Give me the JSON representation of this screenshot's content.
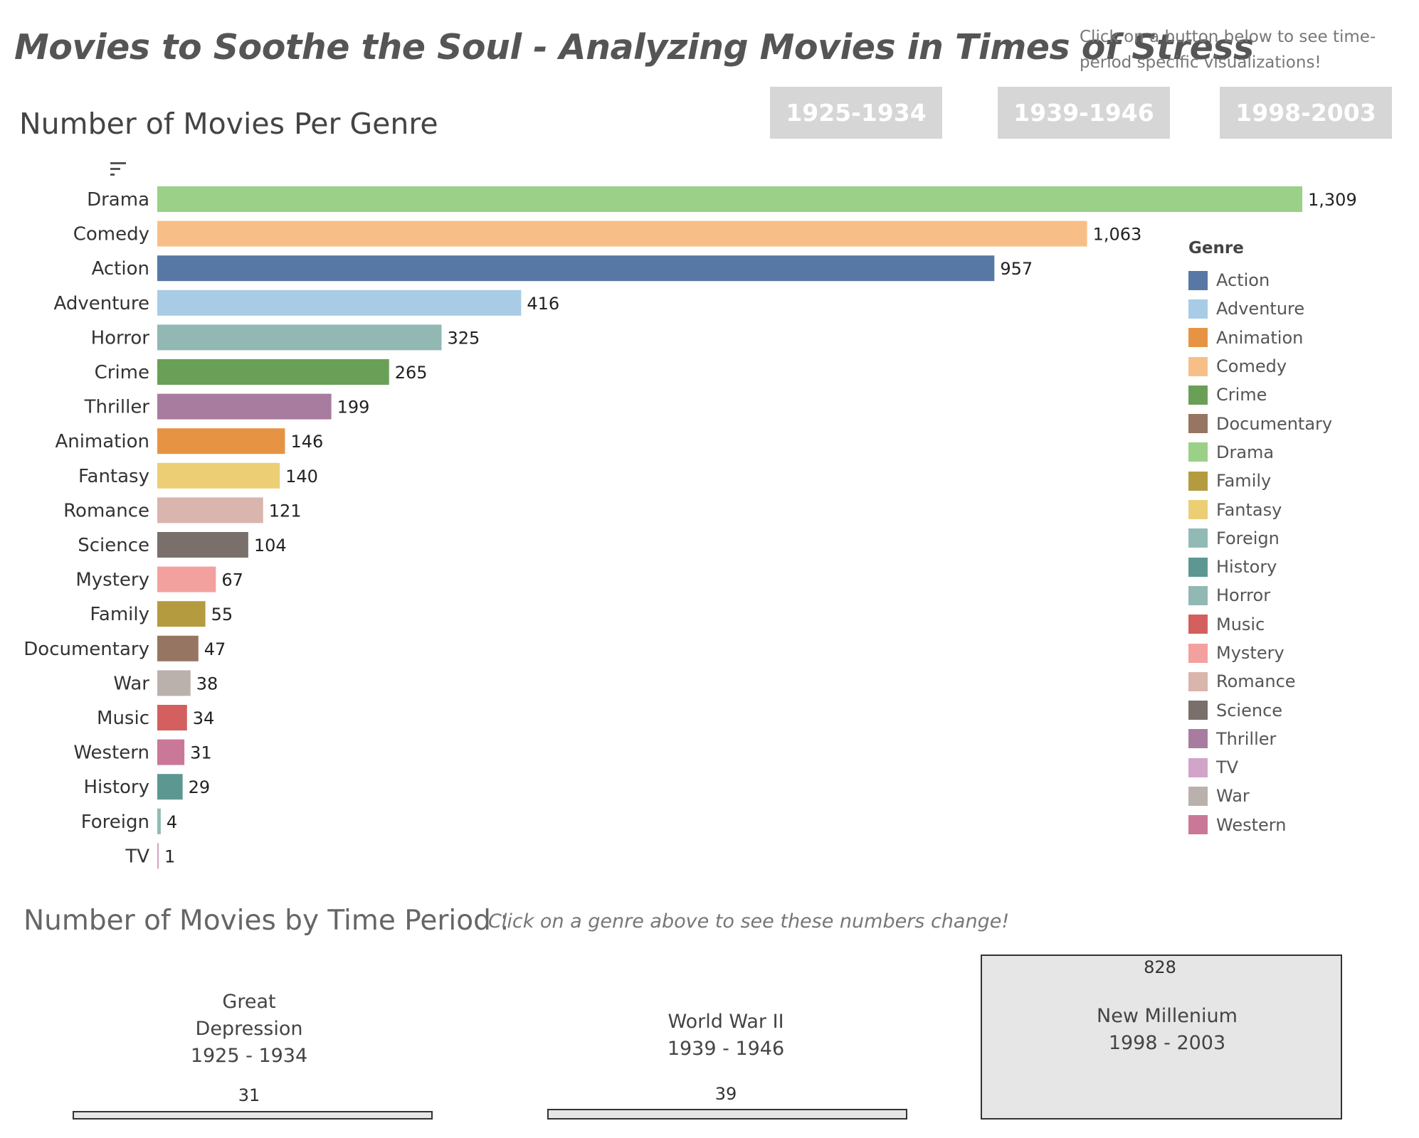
{
  "header": {
    "title": "Movies to Soothe the Soul - Analyzing Movies in Times of Stress",
    "instruction": "Click on a button below to see time-period specific  visualizations!"
  },
  "buttons": [
    {
      "label": "1925-1934"
    },
    {
      "label": "1939-1946"
    },
    {
      "label": "1998-2003"
    }
  ],
  "chart_data": {
    "type": "bar",
    "orientation": "horizontal",
    "title": "Number of Movies Per Genre",
    "xlabel": "",
    "ylabel": "",
    "grid": false,
    "legend_position": "right",
    "categories": [
      "Drama",
      "Comedy",
      "Action",
      "Adventure",
      "Horror",
      "Crime",
      "Thriller",
      "Animation",
      "Fantasy",
      "Romance",
      "Science",
      "Mystery",
      "Family",
      "Documentary",
      "War",
      "Music",
      "Western",
      "History",
      "Foreign",
      "TV"
    ],
    "values": [
      1309,
      1063,
      957,
      416,
      325,
      265,
      199,
      146,
      140,
      121,
      104,
      67,
      55,
      47,
      38,
      34,
      31,
      29,
      4,
      1
    ],
    "value_labels": [
      "1,309",
      "1,063",
      "957",
      "416",
      "325",
      "265",
      "199",
      "146",
      "140",
      "121",
      "104",
      "67",
      "55",
      "47",
      "38",
      "34",
      "31",
      "29",
      "4",
      "1"
    ],
    "xlim": [
      0,
      1309
    ],
    "legend": {
      "title": "Genre",
      "items": [
        "Action",
        "Adventure",
        "Animation",
        "Comedy",
        "Crime",
        "Documentary",
        "Drama",
        "Family",
        "Fantasy",
        "Foreign",
        "History",
        "Horror",
        "Music",
        "Mystery",
        "Romance",
        "Science",
        "Thriller",
        "TV",
        "War",
        "Western"
      ]
    },
    "colors": {
      "Action": "#5778a4",
      "Adventure": "#a8cbe6",
      "Animation": "#e69443",
      "Comedy": "#f7bf87",
      "Crime": "#6a9f58",
      "Documentary": "#967662",
      "Drama": "#9ad087",
      "Family": "#b59b3f",
      "Fantasy": "#ecce75",
      "Foreign": "#92bab5",
      "History": "#5d9791",
      "Horror": "#92b8b4",
      "Music": "#d35f5e",
      "Mystery": "#f3a19e",
      "Romance": "#d9b5ad",
      "Science": "#796f6b",
      "Thriller": "#a87c9f",
      "TV": "#d2a4c9",
      "War": "#bab0ac",
      "Western": "#c97898"
    }
  },
  "time_periods": {
    "title": "Number of Movies by Time Period :",
    "hint": "Click on a genre above to see these numbers change!",
    "periods": [
      {
        "line1": "Great",
        "line2": "Depression",
        "line3": "1925 - 1934",
        "count": "31"
      },
      {
        "line1": "World War II",
        "line2": "1939 - 1946",
        "count": "39"
      },
      {
        "line1": "New Millenium",
        "line2": "1998 - 2003",
        "count": "828"
      }
    ]
  }
}
